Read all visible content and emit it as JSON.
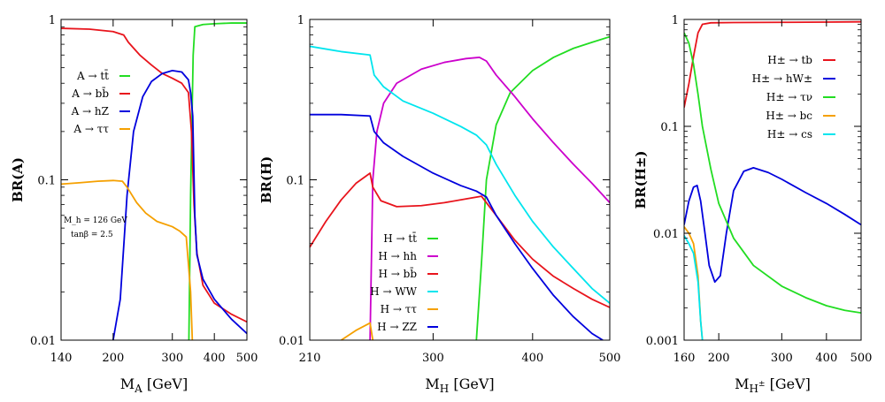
{
  "chart_data": [
    {
      "type": "line",
      "ylabel": "BR(A)",
      "xlabel": "M_A [GeV]",
      "xlim": [
        140,
        500
      ],
      "ylim": [
        0.01,
        1
      ],
      "yscale": "log",
      "xticks": [
        140,
        200,
        300,
        400,
        500
      ],
      "yticks": [
        {
          "v": 0.01,
          "label": "0.01"
        },
        {
          "v": 0.1,
          "label": "0.1"
        },
        {
          "v": 1,
          "label": "1"
        }
      ],
      "annotations": [
        "M_h = 126 GeV",
        "tanβ = 2.5"
      ],
      "series": [
        {
          "name": "A → tt̄",
          "color": "#22dd22",
          "points": [
            [
              336,
              0.01
            ],
            [
              340,
              0.08
            ],
            [
              346,
              0.6
            ],
            [
              350,
              0.9
            ],
            [
              370,
              0.93
            ],
            [
              400,
              0.94
            ],
            [
              450,
              0.95
            ],
            [
              500,
              0.95
            ]
          ]
        },
        {
          "name": "A → bb̄",
          "color": "#e8141c",
          "points": [
            [
              140,
              0.88
            ],
            [
              170,
              0.87
            ],
            [
              200,
              0.84
            ],
            [
              215,
              0.8
            ],
            [
              222,
              0.72
            ],
            [
              240,
              0.6
            ],
            [
              260,
              0.52
            ],
            [
              280,
              0.46
            ],
            [
              300,
              0.43
            ],
            [
              320,
              0.4
            ],
            [
              335,
              0.35
            ],
            [
              342,
              0.2
            ],
            [
              348,
              0.07
            ],
            [
              355,
              0.035
            ],
            [
              370,
              0.022
            ],
            [
              400,
              0.017
            ],
            [
              450,
              0.0145
            ],
            [
              500,
              0.013
            ]
          ]
        },
        {
          "name": "A → hZ",
          "color": "#0000dd",
          "points": [
            [
              200,
              0.01
            ],
            [
              210,
              0.018
            ],
            [
              220,
              0.08
            ],
            [
              230,
              0.2
            ],
            [
              245,
              0.33
            ],
            [
              260,
              0.41
            ],
            [
              280,
              0.46
            ],
            [
              300,
              0.48
            ],
            [
              320,
              0.47
            ],
            [
              335,
              0.42
            ],
            [
              340,
              0.35
            ],
            [
              345,
              0.25
            ],
            [
              350,
              0.06
            ],
            [
              355,
              0.034
            ],
            [
              370,
              0.024
            ],
            [
              400,
              0.018
            ],
            [
              450,
              0.0135
            ],
            [
              500,
              0.011
            ]
          ]
        },
        {
          "name": "A → ττ",
          "color": "#f5a000",
          "points": [
            [
              140,
              0.094
            ],
            [
              160,
              0.096
            ],
            [
              180,
              0.098
            ],
            [
              200,
              0.099
            ],
            [
              213,
              0.098
            ],
            [
              220,
              0.09
            ],
            [
              235,
              0.072
            ],
            [
              250,
              0.062
            ],
            [
              270,
              0.055
            ],
            [
              300,
              0.051
            ],
            [
              315,
              0.048
            ],
            [
              330,
              0.044
            ],
            [
              340,
              0.02
            ],
            [
              344,
              0.01
            ]
          ]
        }
      ]
    },
    {
      "type": "line",
      "ylabel": "BR(H)",
      "xlabel": "M_H [GeV]",
      "xlim": [
        210,
        500
      ],
      "ylim": [
        0.01,
        1
      ],
      "yscale": "log",
      "xticks": [
        210,
        300,
        400,
        500
      ],
      "yticks": [
        {
          "v": 0.01,
          "label": "0.01"
        },
        {
          "v": 0.1,
          "label": "0.1"
        },
        {
          "v": 1,
          "label": "1"
        }
      ],
      "series": [
        {
          "name": "H → tt̄",
          "color": "#22dd22",
          "points": [
            [
              340,
              0.01
            ],
            [
              345,
              0.03
            ],
            [
              350,
              0.1
            ],
            [
              360,
              0.22
            ],
            [
              375,
              0.35
            ],
            [
              400,
              0.48
            ],
            [
              425,
              0.58
            ],
            [
              450,
              0.66
            ],
            [
              475,
              0.72
            ],
            [
              500,
              0.78
            ]
          ]
        },
        {
          "name": "H → hh",
          "color": "#cc00cc",
          "points": [
            [
              250,
              0.01
            ],
            [
              252,
              0.1
            ],
            [
              255,
              0.2
            ],
            [
              260,
              0.3
            ],
            [
              270,
              0.4
            ],
            [
              290,
              0.49
            ],
            [
              310,
              0.54
            ],
            [
              330,
              0.57
            ],
            [
              343,
              0.58
            ],
            [
              350,
              0.55
            ],
            [
              360,
              0.45
            ],
            [
              380,
              0.33
            ],
            [
              400,
              0.24
            ],
            [
              425,
              0.17
            ],
            [
              450,
              0.125
            ],
            [
              475,
              0.095
            ],
            [
              500,
              0.072
            ]
          ]
        },
        {
          "name": "H → bb̄",
          "color": "#e8141c",
          "points": [
            [
              210,
              0.038
            ],
            [
              220,
              0.055
            ],
            [
              230,
              0.075
            ],
            [
              240,
              0.095
            ],
            [
              250,
              0.11
            ],
            [
              252,
              0.09
            ],
            [
              258,
              0.074
            ],
            [
              270,
              0.068
            ],
            [
              290,
              0.069
            ],
            [
              310,
              0.072
            ],
            [
              330,
              0.076
            ],
            [
              345,
              0.079
            ],
            [
              360,
              0.06
            ],
            [
              380,
              0.042
            ],
            [
              400,
              0.032
            ],
            [
              425,
              0.025
            ],
            [
              450,
              0.021
            ],
            [
              475,
              0.018
            ],
            [
              500,
              0.016
            ]
          ]
        },
        {
          "name": "H → WW",
          "color": "#00e5ee",
          "points": [
            [
              210,
              0.68
            ],
            [
              230,
              0.63
            ],
            [
              250,
              0.6
            ],
            [
              253,
              0.45
            ],
            [
              260,
              0.38
            ],
            [
              275,
              0.31
            ],
            [
              300,
              0.26
            ],
            [
              325,
              0.215
            ],
            [
              340,
              0.19
            ],
            [
              350,
              0.165
            ],
            [
              360,
              0.125
            ],
            [
              380,
              0.08
            ],
            [
              400,
              0.055
            ],
            [
              425,
              0.038
            ],
            [
              450,
              0.028
            ],
            [
              475,
              0.021
            ],
            [
              500,
              0.017
            ]
          ]
        },
        {
          "name": "H → ττ",
          "color": "#f5a000",
          "points": [
            [
              230,
              0.01
            ],
            [
              240,
              0.0115
            ],
            [
              250,
              0.0128
            ],
            [
              252,
              0.01
            ]
          ]
        },
        {
          "name": "H → ZZ",
          "color": "#0000dd",
          "points": [
            [
              210,
              0.255
            ],
            [
              230,
              0.255
            ],
            [
              250,
              0.25
            ],
            [
              253,
              0.2
            ],
            [
              260,
              0.17
            ],
            [
              275,
              0.14
            ],
            [
              300,
              0.11
            ],
            [
              325,
              0.092
            ],
            [
              340,
              0.085
            ],
            [
              350,
              0.078
            ],
            [
              360,
              0.06
            ],
            [
              380,
              0.04
            ],
            [
              400,
              0.028
            ],
            [
              425,
              0.019
            ],
            [
              450,
              0.014
            ],
            [
              475,
              0.011
            ],
            [
              490,
              0.01
            ]
          ]
        }
      ]
    },
    {
      "type": "line",
      "ylabel": "BR(H±)",
      "xlabel": "M_H± [GeV]",
      "xlim": [
        160,
        500
      ],
      "ylim": [
        0.001,
        1
      ],
      "yscale": "log",
      "xticks": [
        160,
        200,
        300,
        400,
        500
      ],
      "yticks": [
        {
          "v": 0.001,
          "label": "0.001"
        },
        {
          "v": 0.01,
          "label": "0.01"
        },
        {
          "v": 0.1,
          "label": "0.1"
        },
        {
          "v": 1,
          "label": "1"
        }
      ],
      "series": [
        {
          "name": "H± → tb",
          "color": "#e8141c",
          "points": [
            [
              160,
              0.15
            ],
            [
              165,
              0.25
            ],
            [
              170,
              0.45
            ],
            [
              175,
              0.75
            ],
            [
              180,
              0.9
            ],
            [
              190,
              0.93
            ],
            [
              220,
              0.935
            ],
            [
              300,
              0.94
            ],
            [
              400,
              0.945
            ],
            [
              500,
              0.95
            ]
          ]
        },
        {
          "name": "H± → hW±",
          "color": "#0000dd",
          "points": [
            [
              160,
              0.012
            ],
            [
              165,
              0.02
            ],
            [
              170,
              0.027
            ],
            [
              174,
              0.028
            ],
            [
              178,
              0.02
            ],
            [
              183,
              0.01
            ],
            [
              188,
              0.005
            ],
            [
              195,
              0.0035
            ],
            [
              202,
              0.004
            ],
            [
              210,
              0.01
            ],
            [
              220,
              0.025
            ],
            [
              235,
              0.038
            ],
            [
              250,
              0.041
            ],
            [
              275,
              0.037
            ],
            [
              300,
              0.032
            ],
            [
              350,
              0.024
            ],
            [
              400,
              0.019
            ],
            [
              450,
              0.015
            ],
            [
              500,
              0.012
            ]
          ]
        },
        {
          "name": "H± → τν",
          "color": "#22dd22",
          "points": [
            [
              160,
              0.75
            ],
            [
              165,
              0.6
            ],
            [
              170,
              0.38
            ],
            [
              175,
              0.2
            ],
            [
              180,
              0.1
            ],
            [
              190,
              0.04
            ],
            [
              200,
              0.019
            ],
            [
              220,
              0.009
            ],
            [
              250,
              0.005
            ],
            [
              300,
              0.0032
            ],
            [
              350,
              0.0025
            ],
            [
              400,
              0.0021
            ],
            [
              450,
              0.0019
            ],
            [
              500,
              0.0018
            ]
          ]
        },
        {
          "name": "H± → bc",
          "color": "#f5a000",
          "points": [
            [
              160,
              0.0115
            ],
            [
              165,
              0.01
            ],
            [
              170,
              0.008
            ],
            [
              175,
              0.004
            ],
            [
              178,
              0.0015
            ],
            [
              180,
              0.001
            ]
          ]
        },
        {
          "name": "H± → cs",
          "color": "#00e5ee",
          "points": [
            [
              160,
              0.0095
            ],
            [
              165,
              0.008
            ],
            [
              170,
              0.0065
            ],
            [
              175,
              0.0035
            ],
            [
              178,
              0.0015
            ],
            [
              180,
              0.001
            ]
          ]
        }
      ]
    }
  ]
}
